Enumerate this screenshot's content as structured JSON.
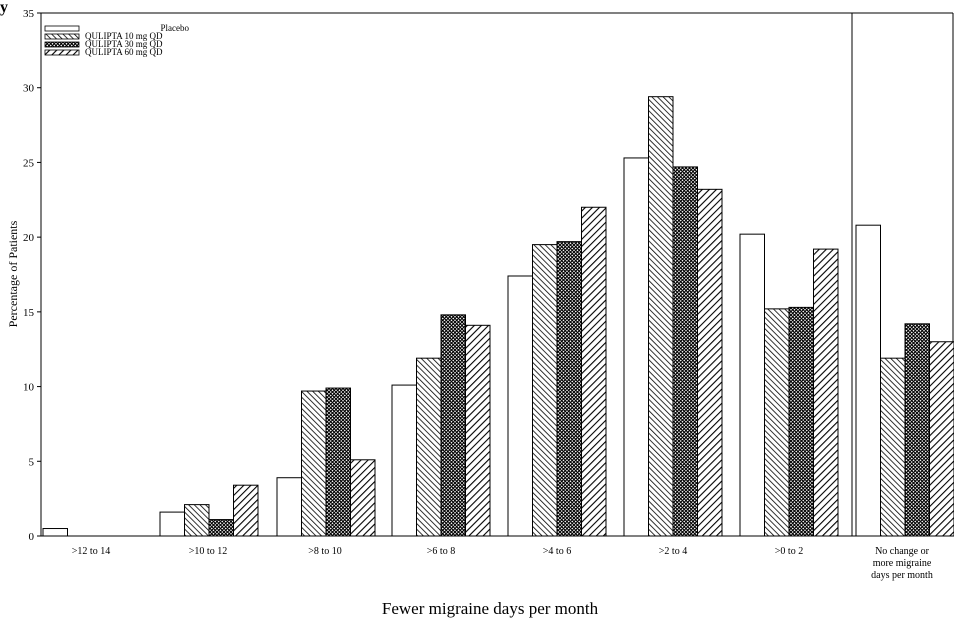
{
  "top_fragment_text": "y",
  "chart_data": {
    "type": "bar",
    "title": "",
    "xlabel": "Fewer migraine days per month",
    "ylabel": "Percentage of Patients",
    "ylim": [
      0,
      35
    ],
    "yticks": [
      "0",
      "5",
      "10",
      "15",
      "20",
      "25",
      "30",
      "35"
    ],
    "grid": false,
    "legend_position": "top-left",
    "categories": [
      ">12 to 14",
      ">10 to 12",
      ">8 to 10",
      ">6 to 8",
      ">4 to 6",
      ">2 to 4",
      ">0 to 2",
      "No change or more migraine days per month"
    ],
    "series": [
      {
        "name": "Placebo",
        "values": [
          0.5,
          1.6,
          3.9,
          10.1,
          17.4,
          25.3,
          20.2,
          20.8
        ]
      },
      {
        "name": "QULIPTA 10 mg QD",
        "values": [
          0,
          2.1,
          9.7,
          11.9,
          19.5,
          29.4,
          15.2,
          11.9
        ]
      },
      {
        "name": "QULIPTA 30 mg QD",
        "values": [
          0,
          1.1,
          9.9,
          14.8,
          19.7,
          24.7,
          15.3,
          14.2
        ]
      },
      {
        "name": "QULIPTA 60 mg QD",
        "values": [
          0,
          3.4,
          5.1,
          14.1,
          22.0,
          23.2,
          19.2,
          13.0
        ]
      }
    ]
  }
}
